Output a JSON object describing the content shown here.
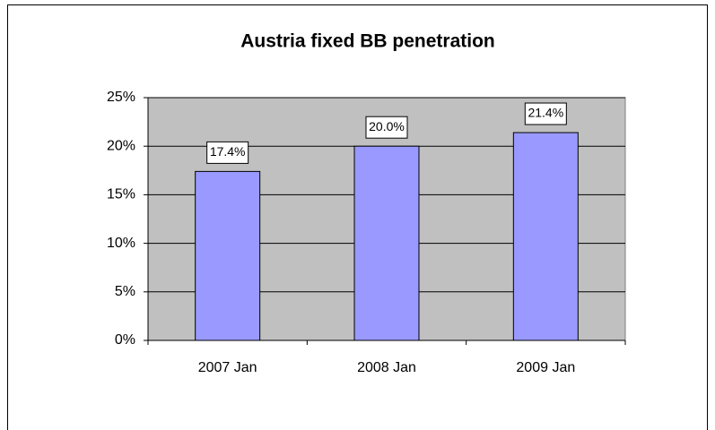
{
  "chart_data": {
    "type": "bar",
    "title": "Austria fixed BB penetration",
    "categories": [
      "2007 Jan",
      "2008 Jan",
      "2009 Jan"
    ],
    "values": [
      17.4,
      20.0,
      21.4
    ],
    "value_labels": [
      "17.4%",
      "20.0%",
      "21.4%"
    ],
    "color": "#9999ff",
    "ylim": [
      0,
      25
    ],
    "yticks": [
      {
        "value": 0,
        "label": "0%"
      },
      {
        "value": 5,
        "label": "5%"
      },
      {
        "value": 10,
        "label": "10%"
      },
      {
        "value": 15,
        "label": "15%"
      },
      {
        "value": 20,
        "label": "20%"
      },
      {
        "value": 25,
        "label": "25%"
      }
    ],
    "grid": true
  }
}
